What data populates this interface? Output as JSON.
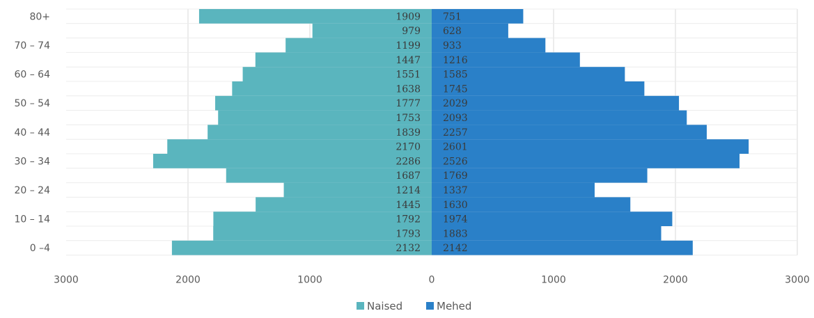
{
  "chart_data": {
    "type": "bar",
    "orientation": "horizontal",
    "layout": "population-pyramid",
    "title": "",
    "xlabel": "",
    "ylabel": "",
    "xlim": [
      -3000,
      3000
    ],
    "x_ticks": [
      -3000,
      -2000,
      -1000,
      0,
      1000,
      2000,
      3000
    ],
    "x_tick_labels": [
      "3000",
      "2000",
      "1000",
      "0",
      "1000",
      "2000",
      "3000"
    ],
    "y_tick_labels": [
      "80+",
      "",
      "70 – 74",
      "",
      "60 – 64",
      "",
      "50 – 54",
      "",
      "40 – 44",
      "",
      "30 – 34",
      "",
      "20 – 24",
      "",
      "10 – 14",
      "",
      "0 –4"
    ],
    "grid": "vertical",
    "legend_position": "bottom",
    "series": [
      {
        "name": "Naised",
        "color": "#5ab5be",
        "values": [
          1909,
          979,
          1199,
          1447,
          1551,
          1638,
          1777,
          1753,
          1839,
          2170,
          2286,
          1687,
          1214,
          1445,
          1792,
          1793,
          2132
        ]
      },
      {
        "name": "Mehed",
        "color": "#2a80c8",
        "values": [
          751,
          628,
          933,
          1216,
          1585,
          1745,
          2029,
          2093,
          2257,
          2601,
          2526,
          1769,
          1337,
          1630,
          1974,
          1883,
          2142
        ]
      }
    ]
  }
}
